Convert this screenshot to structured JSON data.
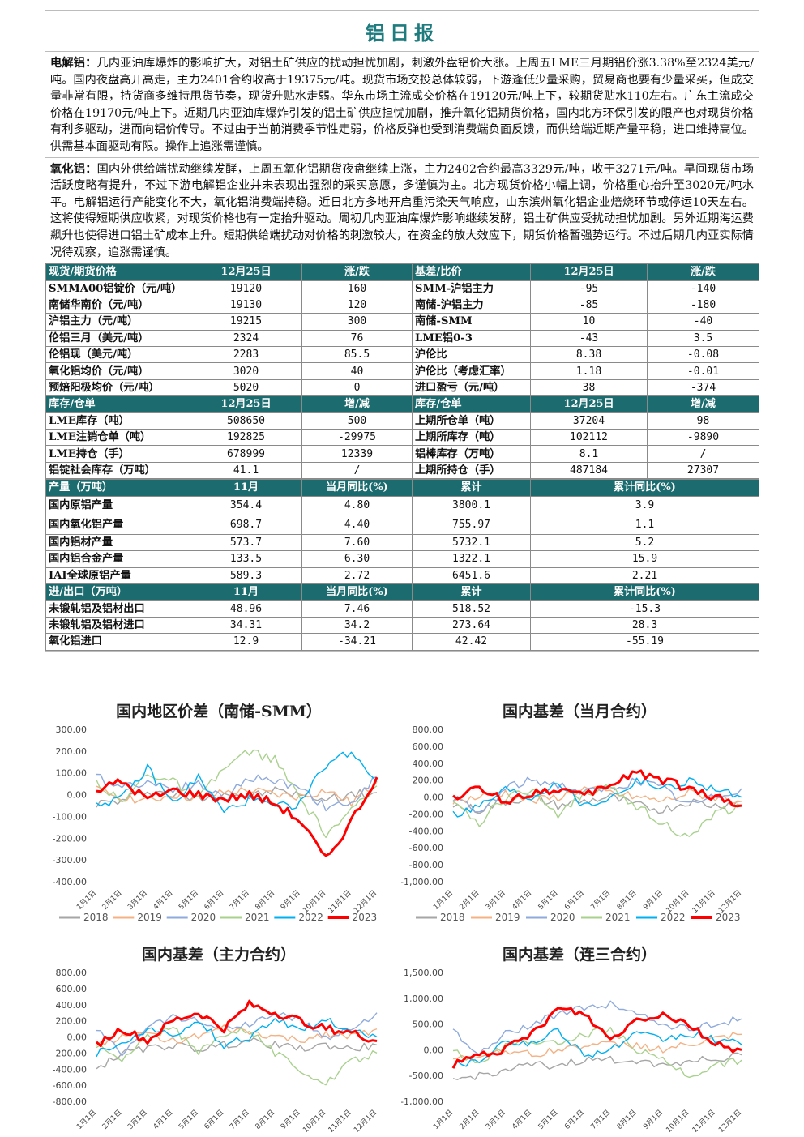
{
  "title": "铝日报",
  "para1": {
    "label": "电解铝：",
    "text": "几内亚油库爆炸的影响扩大，对铝土矿供应的扰动担忧加剧，刺激外盘铝价大涨。上周五LME三月期铝价涨3.38%至2324美元/吨。国内夜盘高开高走，主力2401合约收高于19375元/吨。现货市场交投总体较弱，下游逢低少量采购，贸易商也要有少量采买，但成交量非常有限，持货商多维持甩货节奏，现货升贴水走弱。华东市场主流成交价格在19120元/吨上下，较期货贴水110左右。广东主流成交价格在19170元/吨上下。近期几内亚油库爆炸引发的铝土矿供应担忧加剧，推升氧化铝期货价格，国内北方环保引发的限产也对现货价格有利多驱动，进而向铝价传导。不过由于当前消费季节性走弱，价格反弹也受到消费端负面反馈，而供给端近期产量平稳，进口维持高位。供需基本面驱动有限。操作上追涨需谨慎。"
  },
  "para2": {
    "label": "氧化铝：",
    "text": "国内外供给端扰动继续发酵，上周五氧化铝期货夜盘继续上涨，主力2402合约最高3329元/吨，收于3271元/吨。早间现货市场活跃度略有提升，不过下游电解铝企业并未表现出强烈的采买意愿，多谨慎为主。北方现货价格小幅上调，价格重心抬升至3020元/吨水平。电解铝运行产能变化不大，氧化铝消费端持稳。近日北方多地开启重污染天气响应，山东滨州氧化铝企业焙烧环节或停运10天左右。这将使得短期供应收紧，对现货价格也有一定抬升驱动。周初几内亚油库爆炸影响继续发酵，铝土矿供应受扰动担忧加剧。另外近期海运费飙升也使得进口铝土矿成本上升。短期供给端扰动对价格的刺激较大，在资金的放大效应下，期货价格暂强势运行。不过后期几内亚实际情况待观察，追涨需谨慎。"
  },
  "table": {
    "rows": [
      {
        "hd": true,
        "cells": [
          "现货/期货价格",
          "12月25日",
          "涨/跌",
          "基差/比价",
          "12月25日",
          "涨/跌"
        ]
      },
      {
        "hd": false,
        "cells": [
          "SMMA00铝锭价（元/吨）",
          "19120",
          "160",
          "SMM-沪铝主力",
          "-95",
          "-140"
        ]
      },
      {
        "hd": false,
        "cells": [
          "南储华南价（元/吨）",
          "19130",
          "120",
          "南储-沪铝主力",
          "-85",
          "-180"
        ]
      },
      {
        "hd": false,
        "cells": [
          "沪铝主力（元/吨）",
          "19215",
          "300",
          "南储-SMM",
          "10",
          "-40"
        ]
      },
      {
        "hd": false,
        "cells": [
          "伦铝三月（美元/吨）",
          "2324",
          "76",
          "LME铝0-3",
          "-43",
          "3.5"
        ]
      },
      {
        "hd": false,
        "cells": [
          "伦铝现（美元/吨）",
          "2283",
          "85.5",
          "沪伦比",
          "8.38",
          "-0.08"
        ]
      },
      {
        "hd": false,
        "cells": [
          "氧化铝均价（元/吨）",
          "3020",
          "40",
          "沪伦比（考虑汇率）",
          "1.18",
          "-0.01"
        ]
      },
      {
        "hd": false,
        "cells": [
          "预焙阳极均价（元/吨）",
          "5020",
          "0",
          "进口盈亏（元/吨）",
          "38",
          "-374"
        ]
      },
      {
        "hd": true,
        "cells": [
          "库存/仓单",
          "12月25日",
          "增/减",
          "库存/仓单",
          "12月25日",
          "增/减"
        ]
      },
      {
        "hd": false,
        "cells": [
          "LME库存（吨）",
          "508650",
          "500",
          "上期所仓单（吨）",
          "37204",
          "98"
        ]
      },
      {
        "hd": false,
        "cells": [
          "LME注销仓单（吨）",
          "192825",
          "-29975",
          "上期所库存（吨）",
          "102112",
          "-9890"
        ]
      },
      {
        "hd": false,
        "cells": [
          "LME持仓（手）",
          "678999",
          "12339",
          "铝棒库存（万吨）",
          "8.1",
          "/"
        ]
      },
      {
        "hd": false,
        "cells": [
          "铝锭社会库存（万吨）",
          "41.1",
          "/",
          "上期所持仓（手）",
          "487184",
          "27307"
        ]
      }
    ],
    "rows2": [
      {
        "hd": true,
        "tall": false,
        "cells": [
          "产量（万吨）",
          "11月",
          "当月同比(%)",
          "累计",
          "累计同比(%)"
        ]
      },
      {
        "hd": false,
        "tall": true,
        "cells": [
          "国内原铝产量",
          "354.4",
          "4.80",
          "3800.1",
          "3.9"
        ]
      },
      {
        "hd": false,
        "tall": true,
        "cells": [
          "国内氧化铝产量",
          "698.7",
          "4.40",
          "755.97",
          "1.1"
        ]
      },
      {
        "hd": false,
        "tall": false,
        "cells": [
          "国内铝材产量",
          "573.7",
          "7.60",
          "5732.1",
          "5.2"
        ]
      },
      {
        "hd": false,
        "tall": false,
        "cells": [
          "国内铝合金产量",
          "133.5",
          "6.30",
          "1322.1",
          "15.9"
        ]
      },
      {
        "hd": false,
        "tall": false,
        "cells": [
          "IAI全球原铝产量",
          "589.3",
          "2.72",
          "6451.6",
          "2.21"
        ]
      },
      {
        "hd": true,
        "tall": false,
        "cells": [
          "进/出口（万吨）",
          "11月",
          "当月同比(%)",
          "累计",
          "累计同比(%)"
        ]
      },
      {
        "hd": false,
        "tall": false,
        "cells": [
          "未锻轧铝及铝材出口",
          "48.96",
          "7.46",
          "518.52",
          "-15.3"
        ]
      },
      {
        "hd": false,
        "tall": false,
        "cells": [
          "未锻轧铝及铝材进口",
          "34.31",
          "34.2",
          "273.64",
          "28.3"
        ]
      },
      {
        "hd": false,
        "tall": false,
        "cells": [
          "氧化铝进口",
          "12.9",
          "-34.21",
          "42.42",
          "-55.19"
        ]
      }
    ]
  },
  "chart_data": [
    {
      "type": "line",
      "title": "国内地区价差（南储-SMM）",
      "ylim": [
        -400,
        300
      ],
      "yticks": [
        "300.00",
        "200.00",
        "100.00",
        "0.00",
        "-100.00",
        "-200.00",
        "-300.00",
        "-400.00"
      ],
      "xticks": [
        "1月1日",
        "2月1日",
        "3月1日",
        "4月1日",
        "5月1日",
        "6月1日",
        "7月1日",
        "8月1日",
        "9月1日",
        "10月1日",
        "11月1日",
        "12月1日"
      ],
      "legend": [
        "2018",
        "2019",
        "2020",
        "2021",
        "2022",
        "2023"
      ],
      "colors": [
        "#a6a6a6",
        "#f4b183",
        "#8faadc",
        "#a9d18e",
        "#00b0f0",
        "#ff0000"
      ],
      "series": [
        {
          "name": "2018",
          "values": [
            -40,
            -30,
            20,
            0,
            -20,
            10,
            -10,
            20,
            0,
            -20,
            0,
            10
          ]
        },
        {
          "name": "2019",
          "values": [
            20,
            -10,
            -30,
            0,
            -20,
            10,
            20,
            0,
            -10,
            20,
            -40,
            60
          ]
        },
        {
          "name": "2020",
          "values": [
            80,
            40,
            60,
            30,
            50,
            -20,
            80,
            60,
            40,
            -60,
            -40,
            80
          ]
        },
        {
          "name": "2021",
          "values": [
            60,
            -40,
            100,
            60,
            -20,
            120,
            200,
            160,
            -20,
            -180,
            -80,
            40
          ]
        },
        {
          "name": "2022",
          "values": [
            -40,
            -20,
            120,
            -40,
            80,
            -80,
            -20,
            -60,
            -40,
            140,
            200,
            60
          ]
        },
        {
          "name": "2023",
          "values": [
            20,
            60,
            -20,
            20,
            0,
            -20,
            0,
            -40,
            -120,
            -300,
            -120,
            80
          ]
        }
      ]
    },
    {
      "type": "line",
      "title": "国内基差（当月合约）",
      "ylim": [
        -1000,
        800
      ],
      "yticks": [
        "800.00",
        "600.00",
        "400.00",
        "200.00",
        "0.00",
        "-200.00",
        "-400.00",
        "-600.00",
        "-800.00",
        "-1,000.00"
      ],
      "xticks": [
        "1月1日",
        "2月1日",
        "3月1日",
        "4月1日",
        "5月1日",
        "6月1日",
        "7月1日",
        "8月1日",
        "9月1日",
        "10月1日",
        "11月1日",
        "12月1日"
      ],
      "legend": [
        "2018",
        "2019",
        "2020",
        "2021",
        "2022",
        "2023"
      ],
      "colors": [
        "#a6a6a6",
        "#f4b183",
        "#8faadc",
        "#a9d18e",
        "#00b0f0",
        "#ff0000"
      ],
      "series": [
        {
          "name": "2018",
          "values": [
            -100,
            -150,
            -50,
            0,
            -100,
            -50,
            0,
            -100,
            -150,
            -50,
            -100,
            -50
          ]
        },
        {
          "name": "2019",
          "values": [
            -50,
            0,
            50,
            -50,
            0,
            100,
            50,
            0,
            -50,
            50,
            0,
            -50
          ]
        },
        {
          "name": "2020",
          "values": [
            0,
            -200,
            100,
            200,
            150,
            50,
            100,
            200,
            100,
            -100,
            0,
            100
          ]
        },
        {
          "name": "2021",
          "values": [
            -100,
            -300,
            0,
            100,
            -200,
            50,
            100,
            -100,
            -300,
            -500,
            -200,
            -100
          ]
        },
        {
          "name": "2022",
          "values": [
            -200,
            -100,
            100,
            0,
            200,
            -100,
            0,
            200,
            100,
            200,
            100,
            0
          ]
        },
        {
          "name": "2023",
          "values": [
            0,
            100,
            -50,
            50,
            100,
            0,
            150,
            300,
            200,
            100,
            0,
            -100
          ]
        }
      ]
    },
    {
      "type": "line",
      "title": "国内基差（主力合约）",
      "ylim": [
        -800,
        800
      ],
      "yticks": [
        "800.00",
        "600.00",
        "400.00",
        "200.00",
        "0.00",
        "-200.00",
        "-400.00",
        "-600.00",
        "-800.00"
      ],
      "xticks": [
        "1月1日",
        "2月1日",
        "3月1日",
        "4月1日",
        "5月1日",
        "6月1日",
        "7月1日",
        "8月1日",
        "9月1日",
        "10月1日",
        "11月1日",
        "12月1日"
      ],
      "legend": [],
      "colors": [
        "#a6a6a6",
        "#f4b183",
        "#8faadc",
        "#a9d18e",
        "#00b0f0",
        "#ff0000"
      ],
      "series": [
        {
          "name": "2018",
          "values": [
            -400,
            -200,
            -150,
            -100,
            -150,
            -100,
            -50,
            -100,
            -150,
            -100,
            -150,
            -100
          ]
        },
        {
          "name": "2019",
          "values": [
            -100,
            0,
            50,
            -50,
            0,
            100,
            50,
            0,
            -50,
            50,
            0,
            100
          ]
        },
        {
          "name": "2020",
          "values": [
            100,
            -200,
            150,
            250,
            200,
            100,
            150,
            300,
            200,
            0,
            100,
            300
          ]
        },
        {
          "name": "2021",
          "values": [
            -100,
            -300,
            0,
            100,
            -200,
            50,
            100,
            -200,
            -400,
            -600,
            -300,
            -200
          ]
        },
        {
          "name": "2022",
          "values": [
            -200,
            -100,
            100,
            0,
            200,
            -100,
            0,
            200,
            100,
            200,
            100,
            0
          ]
        },
        {
          "name": "2023",
          "values": [
            -100,
            100,
            -50,
            200,
            300,
            100,
            400,
            300,
            200,
            100,
            50,
            -50
          ]
        }
      ]
    },
    {
      "type": "line",
      "title": "国内基差（连三合约）",
      "ylim": [
        -1000,
        1500
      ],
      "yticks": [
        "1,500.00",
        "1,000.00",
        "500.00",
        "0.00",
        "-500.00",
        "-1,000.00"
      ],
      "xticks": [
        "1月1日",
        "2月1日",
        "3月1日",
        "4月1日",
        "5月1日",
        "6月1日",
        "7月1日",
        "8月1日",
        "9月1日",
        "10月1日",
        "11月1日",
        "12月1日"
      ],
      "legend": [],
      "colors": [
        "#a6a6a6",
        "#f4b183",
        "#8faadc",
        "#a9d18e",
        "#00b0f0",
        "#ff0000"
      ],
      "series": [
        {
          "name": "2018",
          "values": [
            -600,
            -500,
            -400,
            -300,
            -300,
            -200,
            -200,
            -200,
            -300,
            -200,
            -200,
            -100
          ]
        },
        {
          "name": "2019",
          "values": [
            -200,
            -100,
            0,
            -100,
            0,
            100,
            100,
            100,
            0,
            100,
            200,
            300
          ]
        },
        {
          "name": "2020",
          "values": [
            400,
            -100,
            300,
            500,
            700,
            800,
            900,
            700,
            500,
            400,
            500,
            600
          ]
        },
        {
          "name": "2021",
          "values": [
            0,
            -300,
            100,
            200,
            100,
            300,
            400,
            0,
            -200,
            -500,
            -300,
            -200
          ]
        },
        {
          "name": "2022",
          "values": [
            -300,
            -200,
            200,
            100,
            400,
            -100,
            0,
            300,
            200,
            300,
            200,
            100
          ]
        },
        {
          "name": "2023",
          "values": [
            -300,
            -100,
            0,
            300,
            800,
            700,
            200,
            600,
            700,
            500,
            100,
            0
          ]
        }
      ]
    }
  ]
}
